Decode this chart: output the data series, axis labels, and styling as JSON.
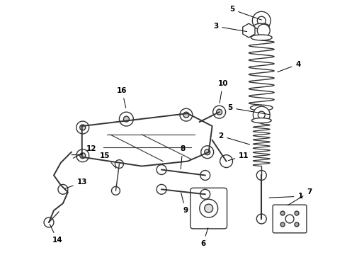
{
  "background_color": "#ffffff",
  "line_color": "#333333",
  "label_color": "#000000",
  "figsize": [
    4.9,
    3.6
  ],
  "dpi": 100
}
